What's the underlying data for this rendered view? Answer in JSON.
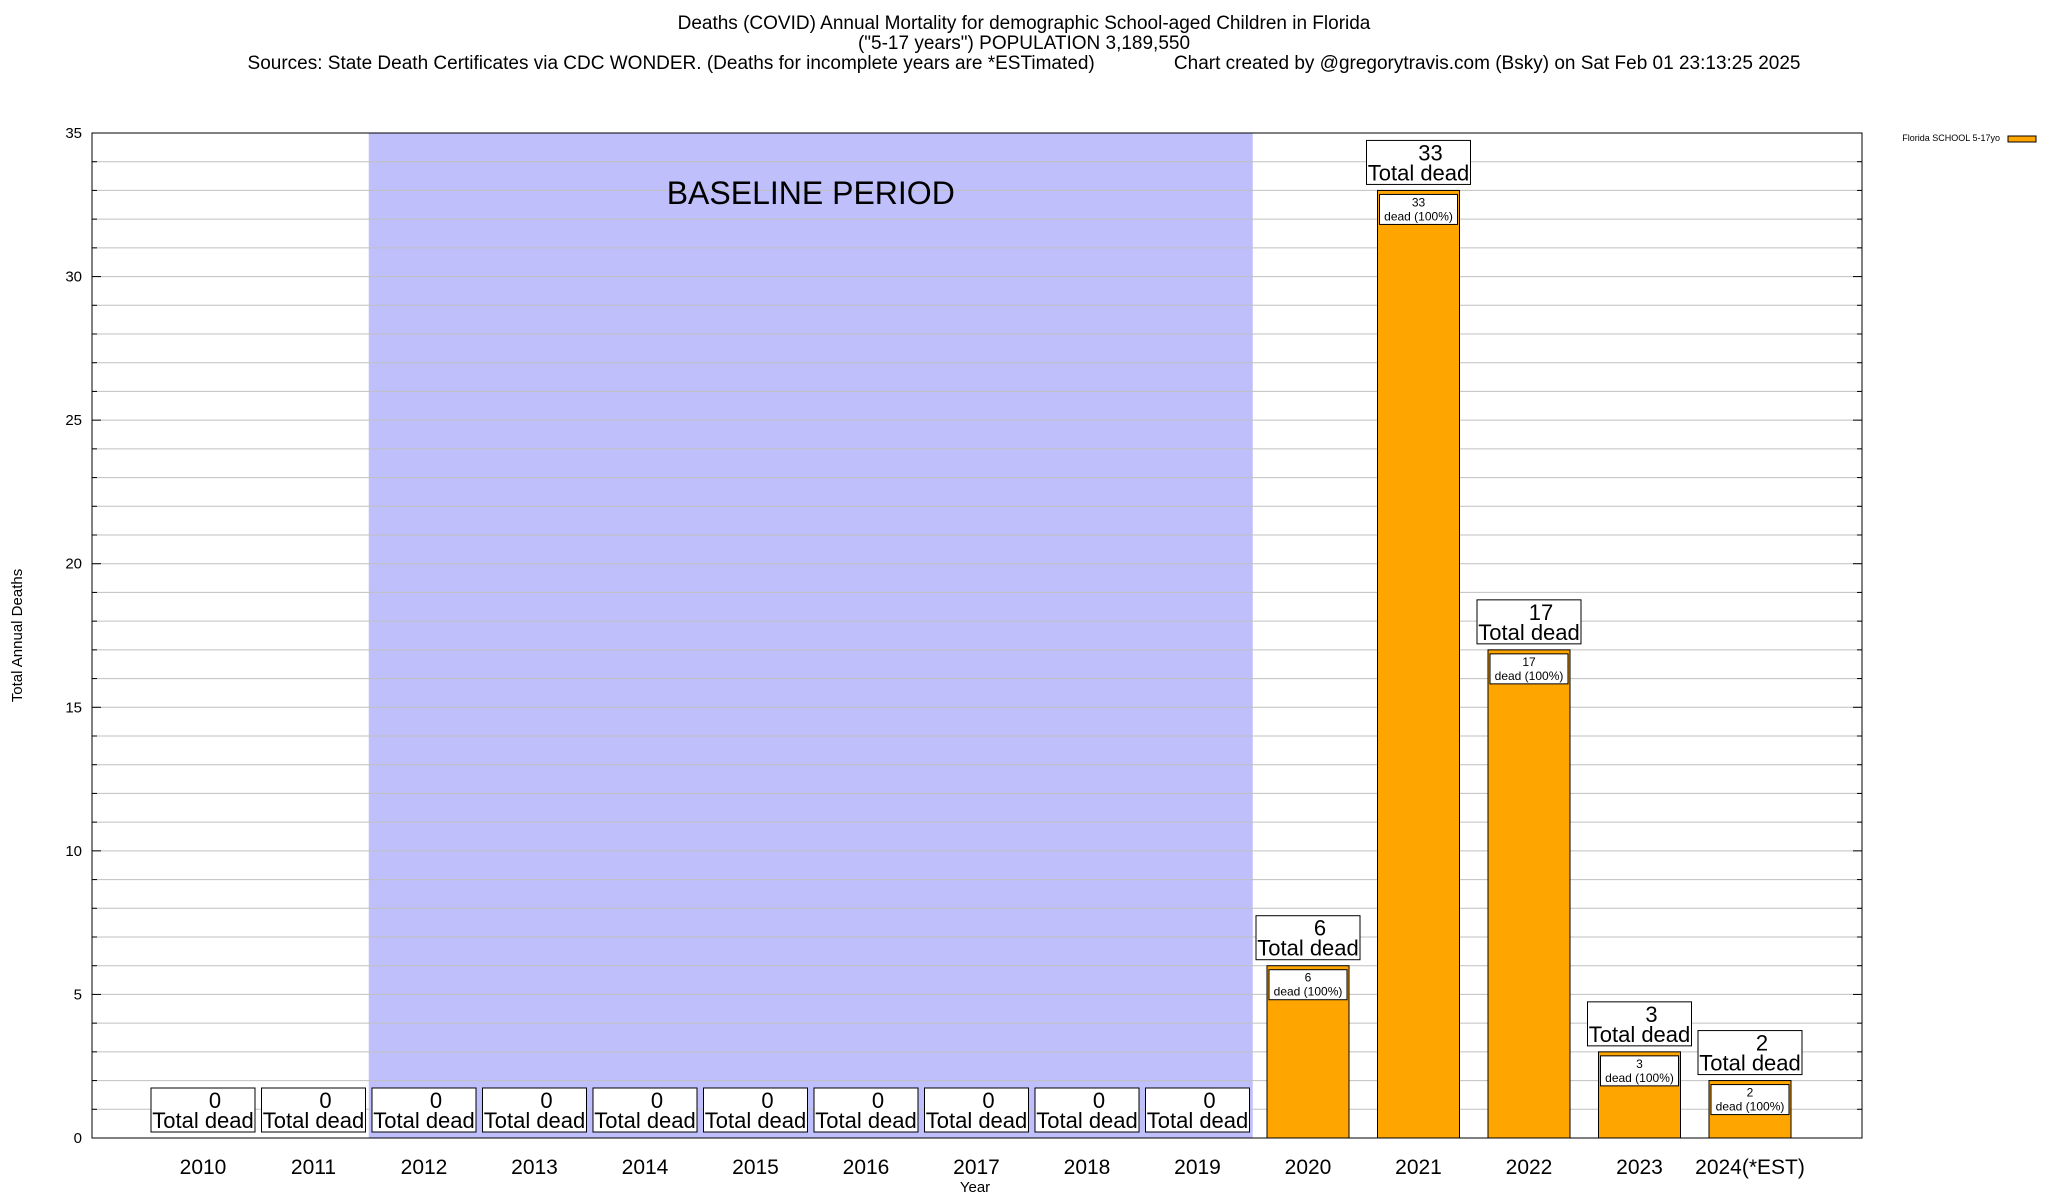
{
  "chart_data": {
    "type": "bar",
    "title": "Deaths (COVID) Annual Mortality for demographic School-aged Children in Florida",
    "subtitle": "(\"5-17 years\") POPULATION 3,189,550",
    "sources": "Sources: State Death Certificates via CDC WONDER. (Deaths for incomplete years are *ESTimated)",
    "credit": "Chart created by @gregorytravis.com (Bsky) on Sat Feb 01 23:13:25 2025",
    "xlabel": "Year",
    "ylabel": "Total Annual Deaths",
    "ylim": [
      0,
      35
    ],
    "yticks": [
      0,
      5,
      10,
      15,
      20,
      25,
      30,
      35
    ],
    "grid": true,
    "legend_position": "top-right",
    "categories": [
      "2010",
      "2011",
      "2012",
      "2013",
      "2014",
      "2015",
      "2016",
      "2017",
      "2018",
      "2019",
      "2020",
      "2021",
      "2022",
      "2023",
      "2024(*EST)"
    ],
    "series": [
      {
        "name": "Florida SCHOOL 5-17yo",
        "color": "#ffa500",
        "values": [
          0,
          0,
          0,
          0,
          0,
          0,
          0,
          0,
          0,
          0,
          6,
          33,
          17,
          3,
          2
        ]
      }
    ],
    "total_label_text": "Total dead",
    "inner_labels": [
      "",
      "",
      "",
      "",
      "",
      "",
      "",
      "",
      "",
      "",
      "dead (100%)",
      "dead (100%)",
      "dead (100%)",
      "dead (100%)",
      "dead (100%)"
    ],
    "baseline": {
      "label": "BASELINE PERIOD",
      "from": "2012",
      "to": "2019",
      "color": "#bfbffc"
    }
  }
}
